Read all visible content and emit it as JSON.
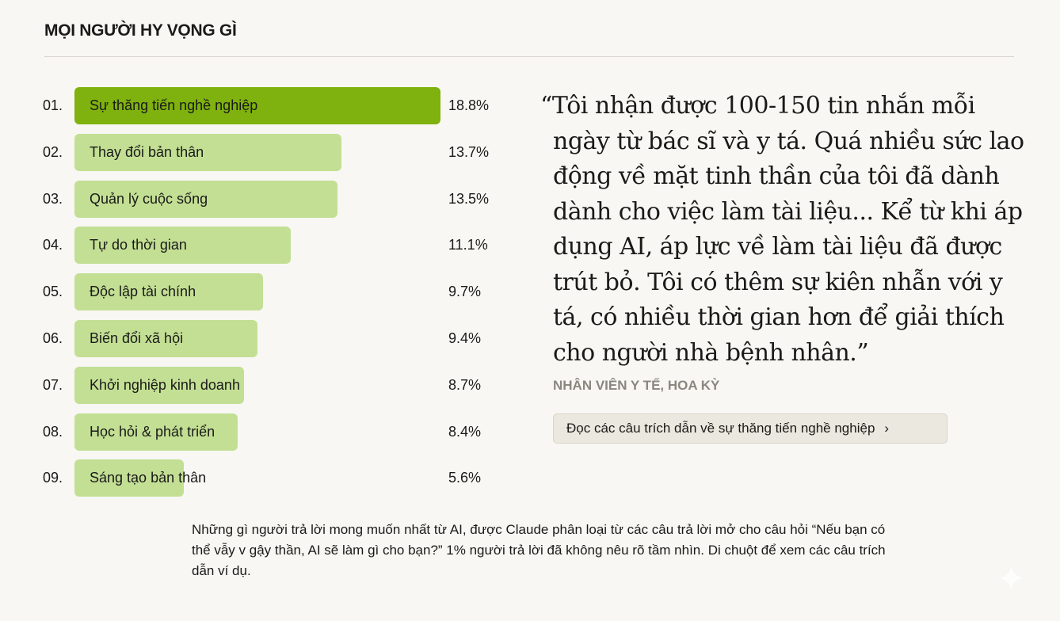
{
  "title": "MỌI NGƯỜI HY VỌNG GÌ",
  "chart_data": {
    "type": "bar",
    "orientation": "horizontal",
    "ranks": [
      "01.",
      "02.",
      "03.",
      "04.",
      "05.",
      "06.",
      "07.",
      "08.",
      "09."
    ],
    "categories": [
      "Sự thăng tiến nghề nghiệp",
      "Thay đổi bản thân",
      "Quản lý cuộc sống",
      "Tự do thời gian",
      "Độc lập tài chính",
      "Biến đổi xã hội",
      "Khởi nghiệp kinh doanh",
      "Học hỏi & phát triển",
      "Sáng tạo bản thân"
    ],
    "values": [
      18.8,
      13.7,
      13.5,
      11.1,
      9.7,
      9.4,
      8.7,
      8.4,
      5.6
    ],
    "value_labels": [
      "18.8%",
      "13.7%",
      "13.5%",
      "11.1%",
      "9.7%",
      "9.4%",
      "8.7%",
      "8.4%",
      "5.6%"
    ],
    "highlighted_index": 0,
    "colors": {
      "highlight": "#7fb20e",
      "default": "#c3df94"
    }
  },
  "quote": {
    "text": "“Tôi nhận được 100-150 tin nhắn mỗi ngày từ bác sĩ và y tá. Quá nhiều sức lao động về mặt tinh thần của tôi đã dành dành cho việc làm tài liệu... Kể từ khi áp dụng AI, áp lực về làm tài liệu đã được trút bỏ. Tôi có thêm sự kiên nhẫn với y tá, có nhiều thời gian hơn để giải thích cho người nhà bệnh nhân.”",
    "attribution": "NHÂN VIÊN Y TẾ, HOA KỲ",
    "button_label": "Đọc các câu trích dẫn về sự thăng tiến nghề nghiệp",
    "button_icon": "chevron-right-icon"
  },
  "caption": "Những gì người trả lời mong muốn nhất từ AI, được Claude phân loại từ các câu trả lời mở cho câu hỏi “Nếu bạn có thể vẫy v gậy thần, AI sẽ làm gì cho bạn?” 1% người trả lời đã không nêu rõ tầm nhìn. Di chuột để xem các câu trích dẫn ví dụ."
}
